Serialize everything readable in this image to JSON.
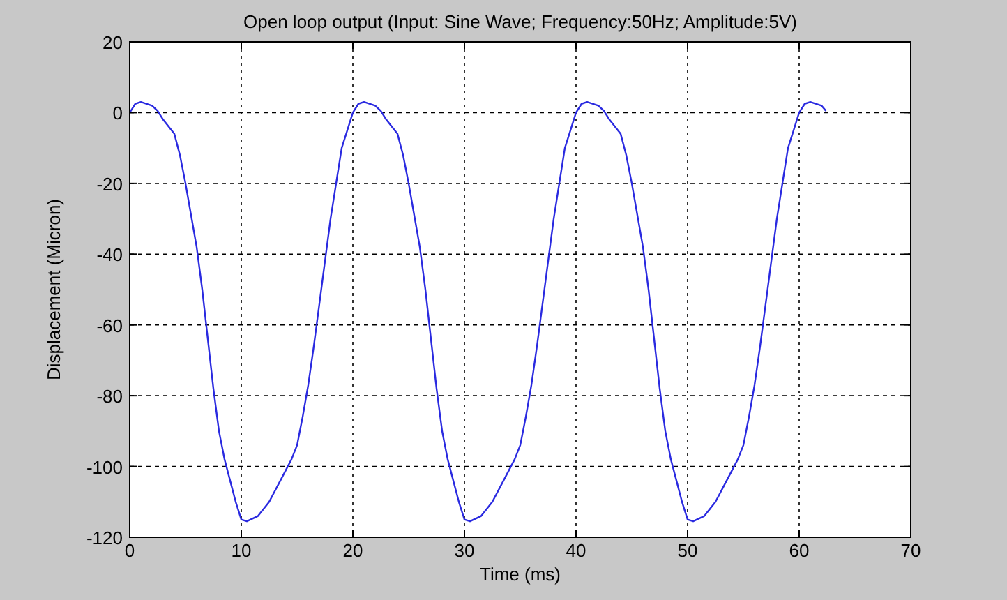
{
  "chart_data": {
    "type": "line",
    "title": "Open loop output (Input: Sine Wave; Frequency:50Hz; Amplitude:5V)",
    "xlabel": "Time (ms)",
    "ylabel": "Displacement (Micron)",
    "x": [
      0,
      0.5,
      1,
      2,
      2.5,
      3,
      4,
      4.5,
      5,
      5.5,
      6,
      6.5,
      7,
      7.5,
      8,
      8.5,
      9,
      9.5,
      10,
      10.5,
      11.5,
      12.5,
      13.5,
      14.5,
      15,
      15.5,
      16,
      16.5,
      17,
      17.5,
      18,
      18.5,
      19,
      19.5,
      20,
      20.5,
      21,
      22,
      22.5,
      23,
      24,
      24.5,
      25,
      25.5,
      26,
      26.5,
      27,
      27.5,
      28,
      28.5,
      29,
      29.5,
      30,
      30.5,
      31.5,
      32.5,
      33.5,
      34.5,
      35,
      35.5,
      36,
      36.5,
      37,
      37.5,
      38,
      38.5,
      39,
      39.5,
      40,
      40.5,
      41,
      42,
      42.5,
      43,
      44,
      44.5,
      45,
      45.5,
      46,
      46.5,
      47,
      47.5,
      48,
      48.5,
      49,
      49.5,
      50,
      50.5,
      51.5,
      52.5,
      53.5,
      54.5,
      55,
      55.5,
      56,
      56.5,
      57,
      57.5,
      58,
      58.5,
      59,
      59.5,
      60,
      60.5,
      61,
      62,
      62.4
    ],
    "series": [
      {
        "color": "#2a2ae0",
        "values": [
          0,
          2.5,
          3,
          2,
          0.5,
          -2,
          -6,
          -12,
          -20,
          -29,
          -38,
          -50,
          -64,
          -78,
          -90,
          -98,
          -104,
          -110,
          -115,
          -115.5,
          -114,
          -110,
          -104,
          -98,
          -94,
          -86,
          -77,
          -66,
          -54,
          -42,
          -30,
          -20,
          -10,
          -5,
          0,
          2.5,
          3,
          2,
          0.5,
          -2,
          -6,
          -12,
          -20,
          -29,
          -38,
          -50,
          -64,
          -78,
          -90,
          -98,
          -104,
          -110,
          -115,
          -115.5,
          -114,
          -110,
          -104,
          -98,
          -94,
          -86,
          -77,
          -66,
          -54,
          -42,
          -30,
          -20,
          -10,
          -5,
          0,
          2.5,
          3,
          2,
          0.5,
          -2,
          -6,
          -12,
          -20,
          -29,
          -38,
          -50,
          -64,
          -78,
          -90,
          -98,
          -104,
          -110,
          -115,
          -115.5,
          -114,
          -110,
          -104,
          -98,
          -94,
          -86,
          -77,
          -66,
          -54,
          -42,
          -30,
          -20,
          -10,
          -5,
          0,
          2.5,
          3,
          2,
          0.5
        ]
      }
    ],
    "xlim": [
      0,
      70
    ],
    "xticks": [
      0,
      10,
      20,
      30,
      40,
      50,
      60,
      70
    ],
    "ylim": [
      -120,
      20
    ],
    "yticks": [
      -120,
      -100,
      -80,
      -60,
      -40,
      -20,
      0,
      20
    ],
    "grid": true,
    "line_style": "solid"
  }
}
